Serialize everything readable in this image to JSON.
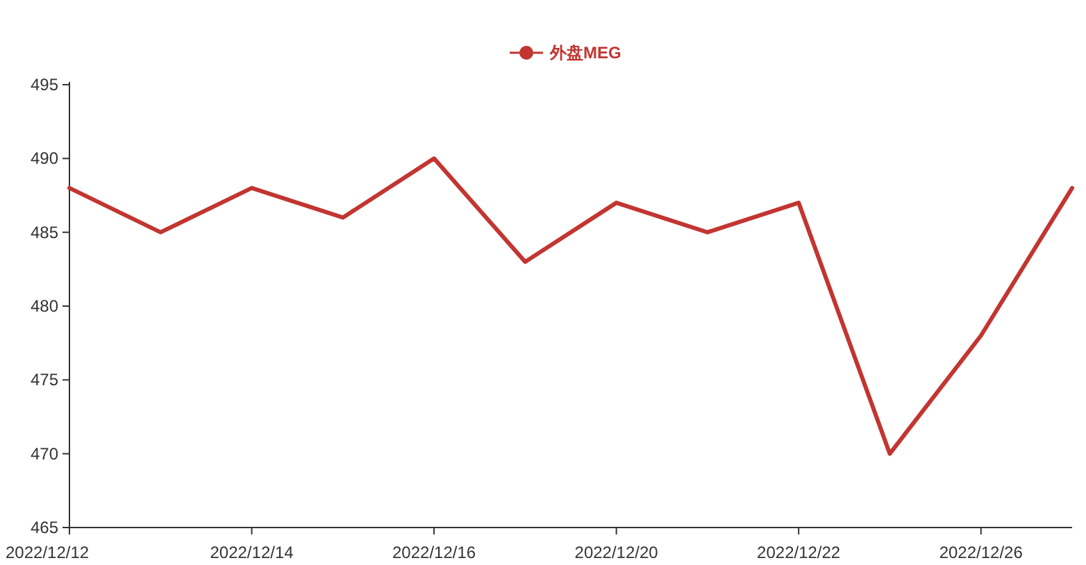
{
  "chart_data": {
    "type": "line",
    "categories": [
      "2022/12/12",
      null,
      "2022/12/14",
      null,
      "2022/12/16",
      null,
      "2022/12/20",
      null,
      "2022/12/22",
      null,
      "2022/12/26",
      null
    ],
    "series": [
      {
        "name": "外盘MEG",
        "color": "#c23531",
        "values": [
          488,
          485,
          488,
          486,
          490,
          483,
          487,
          485,
          487,
          470,
          478,
          488
        ]
      }
    ],
    "ylim": [
      465,
      495
    ],
    "yticks": [
      465,
      470,
      475,
      480,
      485,
      490,
      495
    ],
    "legend": "top",
    "grid": false
  }
}
